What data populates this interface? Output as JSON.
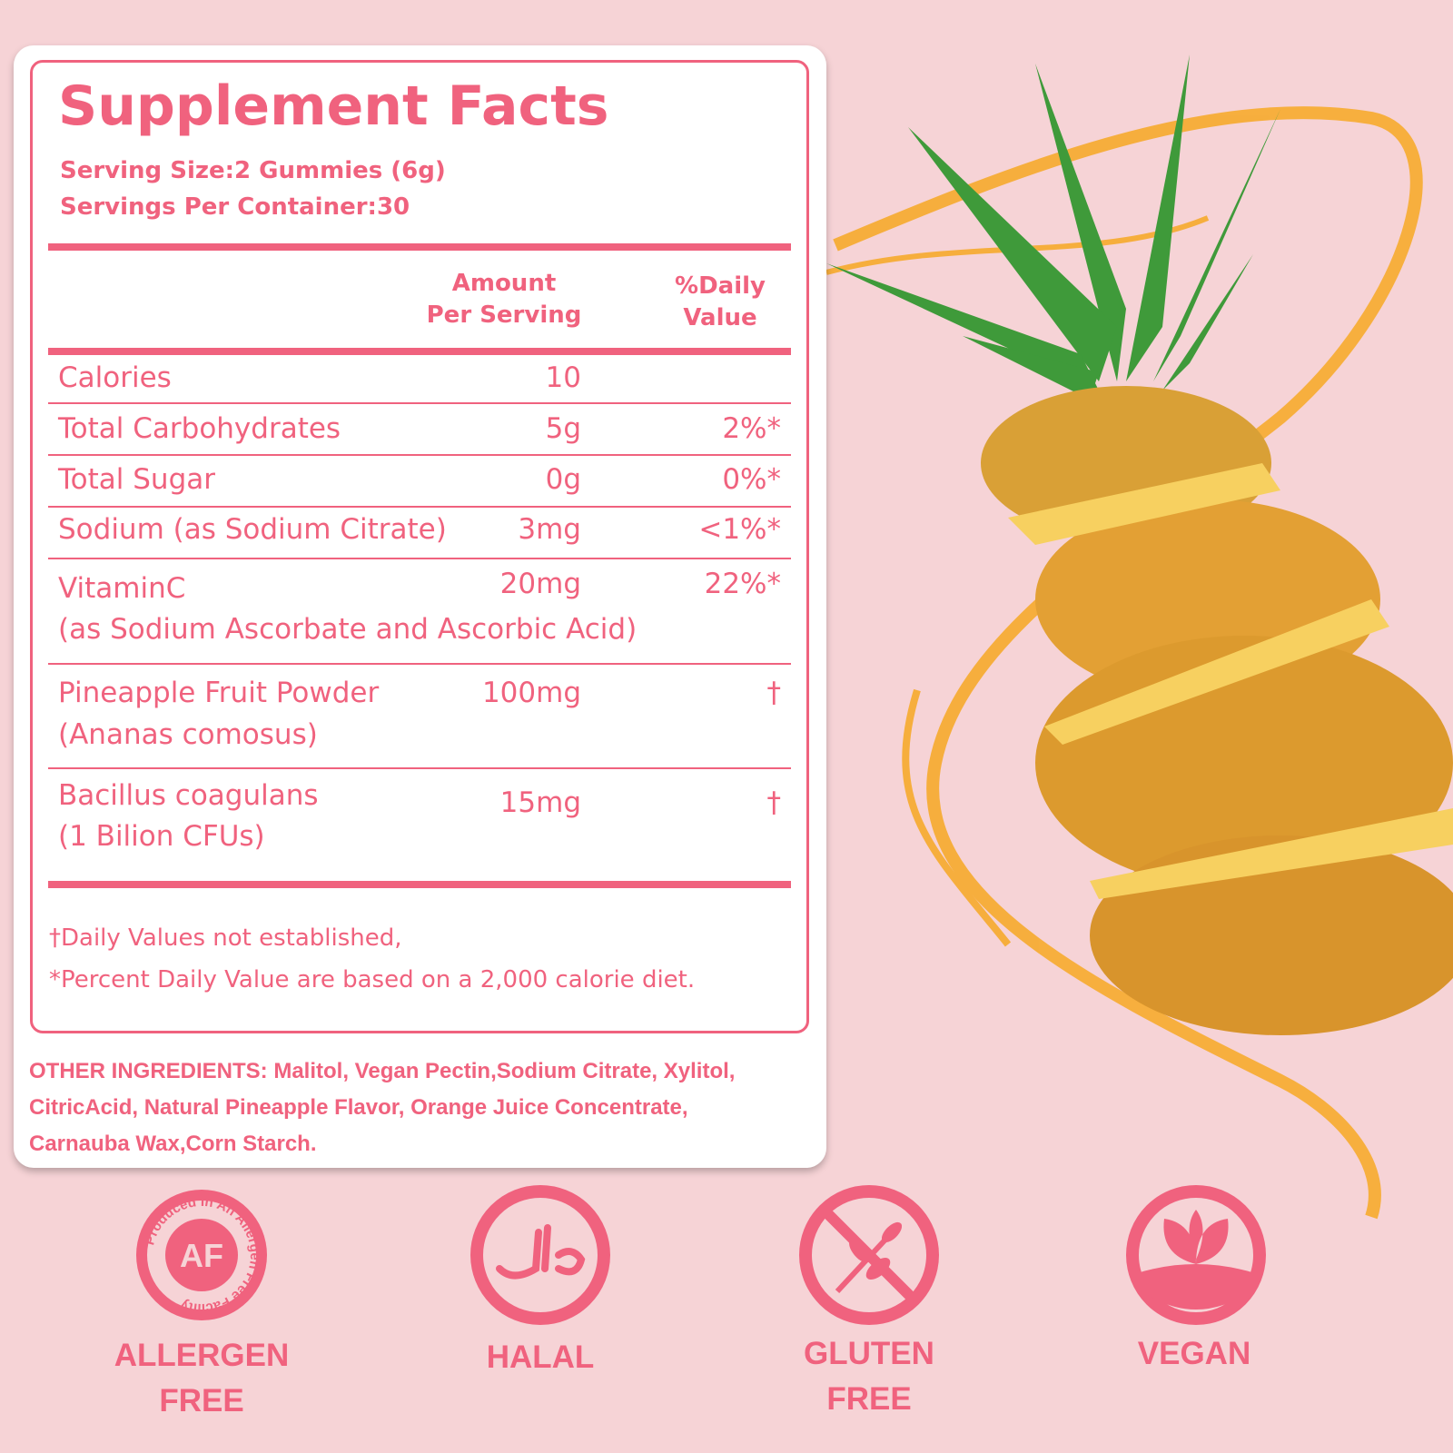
{
  "title": "Supplement Facts",
  "serving_size": "Serving Size:2 Gummies (6g)",
  "servings_per_container": "Servings Per Container:30",
  "headers": {
    "amount_1": "Amount",
    "amount_2": "Per Serving",
    "dv_1": "%Daily",
    "dv_2": "Value"
  },
  "rows": [
    {
      "name": "Calories",
      "amount": "10",
      "dv": ""
    },
    {
      "name": "Total Carbohydrates",
      "amount": "5g",
      "dv": "2%*"
    },
    {
      "name": "Total Sugar",
      "amount": "0g",
      "dv": "0%*"
    },
    {
      "name": "Sodium (as Sodium Citrate)",
      "amount": "3mg",
      "dv": "<1%*"
    },
    {
      "name": "VitaminC",
      "sub": "(as Sodium Ascorbate and Ascorbic Acid)",
      "amount": "20mg",
      "dv": "22%*"
    },
    {
      "name": "Pineapple Fruit Powder",
      "sub": "(Ananas comosus)",
      "amount": "100mg",
      "dv": "†"
    },
    {
      "name": "Bacillus coagulans",
      "sub": "(1 Bilion CFUs)",
      "amount": "15mg",
      "dv": "†"
    }
  ],
  "footnotes": [
    "†Daily Values not established,",
    "*Percent Daily Value are based on a 2,000 calorie diet."
  ],
  "other_ingredients": [
    "OTHER INGREDIENTS: Malitol, Vegan Pectin,Sodium Citrate, Xylitol,",
    "CitricAcid, Natural Pineapple Flavor, Orange Juice Concentrate,",
    "Carnauba Wax,Corn Starch."
  ],
  "badges": [
    {
      "icon": "allergen-free-seal",
      "seal_text": "Produced In An Allergen Free Facility",
      "center": "AF",
      "label_1": "ALLERGEN",
      "label_2": "FREE"
    },
    {
      "icon": "halal-icon",
      "label_1": "HALAL"
    },
    {
      "icon": "gluten-free-icon",
      "label_1": "GLUTEN",
      "label_2": "FREE"
    },
    {
      "icon": "vegan-leaf-icon",
      "label_1": "VEGAN"
    }
  ],
  "colors": {
    "accent": "#f0627e",
    "background": "#f6d3d6",
    "juice": "#f7a823"
  }
}
